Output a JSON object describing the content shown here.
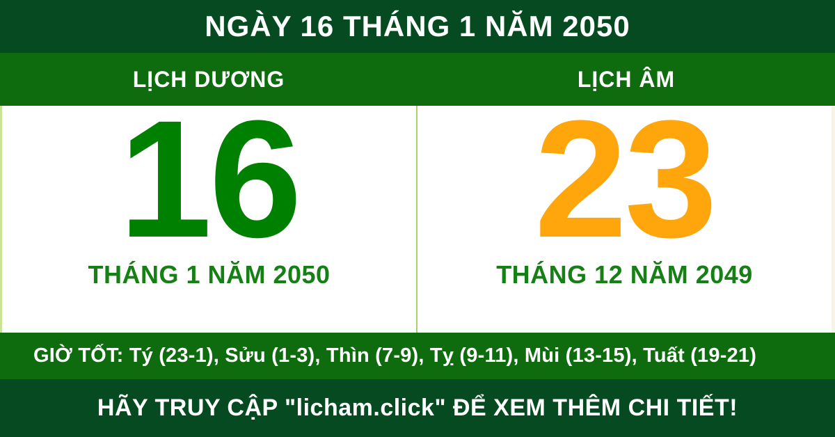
{
  "header": {
    "title": "NGÀY 16 THÁNG 1 NĂM 2050"
  },
  "calendars": {
    "solar": {
      "label": "LỊCH DƯƠNG",
      "day": "16",
      "month_year": "THÁNG 1 NĂM 2050"
    },
    "lunar": {
      "label": "LỊCH ÂM",
      "day": "23",
      "month_year": "THÁNG 12 NĂM 2049"
    }
  },
  "good_hours": {
    "text": "GIỜ TỐT: Tý (23-1), Sửu (1-3), Thìn (7-9), Tỵ (9-11), Mùi (13-15), Tuất (19-21)"
  },
  "footer": {
    "text": "HÃY TRUY CẬP \"licham.click\" ĐỂ XEM THÊM CHI TIẾT!"
  },
  "colors": {
    "dark_green": "#054a20",
    "bar_green": "#0e6c0e",
    "solar_day_green": "#008000",
    "lunar_day_orange": "#ffa60d",
    "month_text_green": "#168016",
    "divider_light_green": "#a6d46b",
    "text_white": "#ffffff"
  }
}
